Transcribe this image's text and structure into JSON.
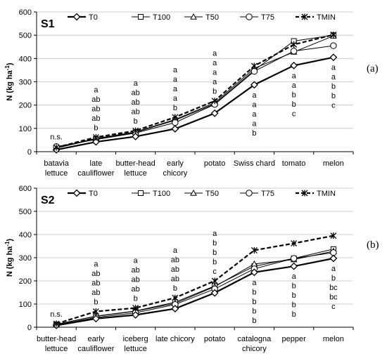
{
  "chart_data": [
    {
      "type": "line",
      "panel_label": "S1",
      "tag": "(a)",
      "ylabel": "N (kg ha",
      "ylabel_sup": "-1",
      "ylabel_end": ")",
      "ylim": [
        0,
        600
      ],
      "yticks": [
        "0",
        "100",
        "200",
        "300",
        "400",
        "500",
        "600"
      ],
      "categories": [
        [
          "batavia",
          "lettuce"
        ],
        [
          "late",
          "cauliflower"
        ],
        [
          "butter-head",
          "lettuce"
        ],
        [
          "early",
          "chicory"
        ],
        [
          "potato"
        ],
        [
          "Swiss chard"
        ],
        [
          "tomato"
        ],
        [
          "melon"
        ]
      ],
      "series": [
        {
          "name": "T0",
          "values": [
            8,
            42,
            65,
            98,
            165,
            287,
            370,
            405
          ]
        },
        {
          "name": "T100",
          "values": [
            15,
            55,
            83,
            135,
            205,
            350,
            475,
            500
          ]
        },
        {
          "name": "T50",
          "values": [
            17,
            57,
            85,
            138,
            210,
            358,
            428,
            497
          ]
        },
        {
          "name": "T75",
          "values": [
            22,
            52,
            80,
            125,
            203,
            345,
            432,
            455
          ]
        },
        {
          "name": "TMIN",
          "values": [
            18,
            62,
            90,
            148,
            218,
            368,
            460,
            502
          ]
        }
      ],
      "annotations": [
        {
          "index": 0,
          "position": "above",
          "lines": [
            "n.s."
          ]
        },
        {
          "index": 1,
          "position": "above",
          "lines": [
            "a",
            "ab",
            "ab",
            "ab",
            "b"
          ]
        },
        {
          "index": 2,
          "position": "above",
          "lines": [
            "a",
            "ab",
            "ab",
            "ab",
            "b"
          ]
        },
        {
          "index": 3,
          "position": "above",
          "lines": [
            "a",
            "a",
            "a",
            "a",
            "b"
          ]
        },
        {
          "index": 4,
          "position": "above",
          "lines": [
            "a",
            "a",
            "a",
            "a",
            "b"
          ]
        },
        {
          "index": 5,
          "position": "below",
          "lines": [
            "a",
            "a",
            "a",
            "a",
            "b"
          ]
        },
        {
          "index": 6,
          "position": "below",
          "lines": [
            "a",
            "a",
            "b",
            "b",
            "c"
          ]
        },
        {
          "index": 7,
          "position": "below",
          "lines": [
            "a",
            "a",
            "b",
            "b",
            "c"
          ]
        }
      ]
    },
    {
      "type": "line",
      "panel_label": "S2",
      "tag": "(b)",
      "ylabel": "N (kg ha",
      "ylabel_sup": "-1",
      "ylabel_end": ")",
      "ylim": [
        0,
        600
      ],
      "yticks": [
        "0",
        "100",
        "200",
        "300",
        "400",
        "500",
        "600"
      ],
      "categories": [
        [
          "butter-head",
          "lettuce"
        ],
        [
          "early",
          "cauliflower"
        ],
        [
          "iceberg",
          "lettuce"
        ],
        [
          "late chicory"
        ],
        [
          "potato"
        ],
        [
          "catalogna",
          "chicory"
        ],
        [
          "pepper"
        ],
        [
          "melon"
        ]
      ],
      "series": [
        {
          "name": "T0",
          "values": [
            8,
            37,
            53,
            80,
            148,
            237,
            263,
            297
          ]
        },
        {
          "name": "T100",
          "values": [
            12,
            48,
            70,
            108,
            178,
            263,
            297,
            337
          ]
        },
        {
          "name": "T50",
          "values": [
            13,
            47,
            69,
            103,
            175,
            273,
            292,
            328
          ]
        },
        {
          "name": "T75",
          "values": [
            10,
            42,
            62,
            98,
            165,
            252,
            297,
            322
          ]
        },
        {
          "name": "TMIN",
          "values": [
            15,
            68,
            83,
            127,
            200,
            332,
            362,
            395
          ]
        }
      ],
      "annotations": [
        {
          "index": 0,
          "position": "above",
          "lines": [
            "n.s."
          ]
        },
        {
          "index": 1,
          "position": "above",
          "lines": [
            "a",
            "ab",
            "ab",
            "ab",
            "b"
          ]
        },
        {
          "index": 2,
          "position": "above",
          "lines": [
            "a",
            "ab",
            "ab",
            "ab",
            "b"
          ]
        },
        {
          "index": 3,
          "position": "above",
          "lines": [
            "a",
            "ab",
            "ab",
            "ab",
            "b"
          ]
        },
        {
          "index": 4,
          "position": "above",
          "lines": [
            "a",
            "b",
            "b",
            "b",
            "c"
          ]
        },
        {
          "index": 5,
          "position": "below",
          "lines": [
            "a",
            "b",
            "b",
            "b",
            "b"
          ]
        },
        {
          "index": 6,
          "position": "below",
          "lines": [
            "a",
            "b",
            "b",
            "b",
            "b"
          ]
        },
        {
          "index": 7,
          "position": "below",
          "lines": [
            "a",
            "b",
            "bc",
            "bc",
            "c"
          ]
        }
      ]
    }
  ],
  "legend_style": {
    "T0": {
      "marker": "diamond",
      "dash": "none",
      "bold": true
    },
    "T100": {
      "marker": "square",
      "dash": "none",
      "bold": false
    },
    "T50": {
      "marker": "triangle",
      "dash": "none",
      "bold": false
    },
    "T75": {
      "marker": "circle",
      "dash": "none",
      "bold": false
    },
    "TMIN": {
      "marker": "asterisk",
      "dash": "dashed",
      "bold": true
    }
  },
  "colors": {
    "line": "#000000",
    "grid": "#bfbfbf",
    "marker_fill": "#ffffff"
  }
}
